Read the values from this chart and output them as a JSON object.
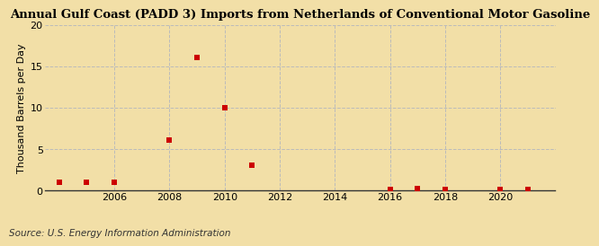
{
  "title": "Annual Gulf Coast (PADD 3) Imports from Netherlands of Conventional Motor Gasoline",
  "ylabel": "Thousand Barrels per Day",
  "source": "Source: U.S. Energy Information Administration",
  "background_color": "#f2dfa7",
  "plot_background_color": "#f2dfa7",
  "data_points": [
    {
      "year": 2004,
      "value": 1.0
    },
    {
      "year": 2005,
      "value": 1.0
    },
    {
      "year": 2006,
      "value": 1.0
    },
    {
      "year": 2008,
      "value": 6.0
    },
    {
      "year": 2009,
      "value": 16.0
    },
    {
      "year": 2010,
      "value": 10.0
    },
    {
      "year": 2011,
      "value": 3.0
    },
    {
      "year": 2016,
      "value": 0.08
    },
    {
      "year": 2017,
      "value": 0.15
    },
    {
      "year": 2018,
      "value": 0.1
    },
    {
      "year": 2020,
      "value": 0.08
    },
    {
      "year": 2021,
      "value": 0.1
    }
  ],
  "marker_color": "#cc0000",
  "marker_size": 4,
  "xlim": [
    2003.5,
    2022
  ],
  "ylim": [
    0,
    20
  ],
  "yticks": [
    0,
    5,
    10,
    15,
    20
  ],
  "xticks": [
    2006,
    2008,
    2010,
    2012,
    2014,
    2016,
    2018,
    2020
  ],
  "grid_color": "#bbbbbb",
  "title_fontsize": 9.5,
  "axis_fontsize": 8,
  "source_fontsize": 7.5
}
